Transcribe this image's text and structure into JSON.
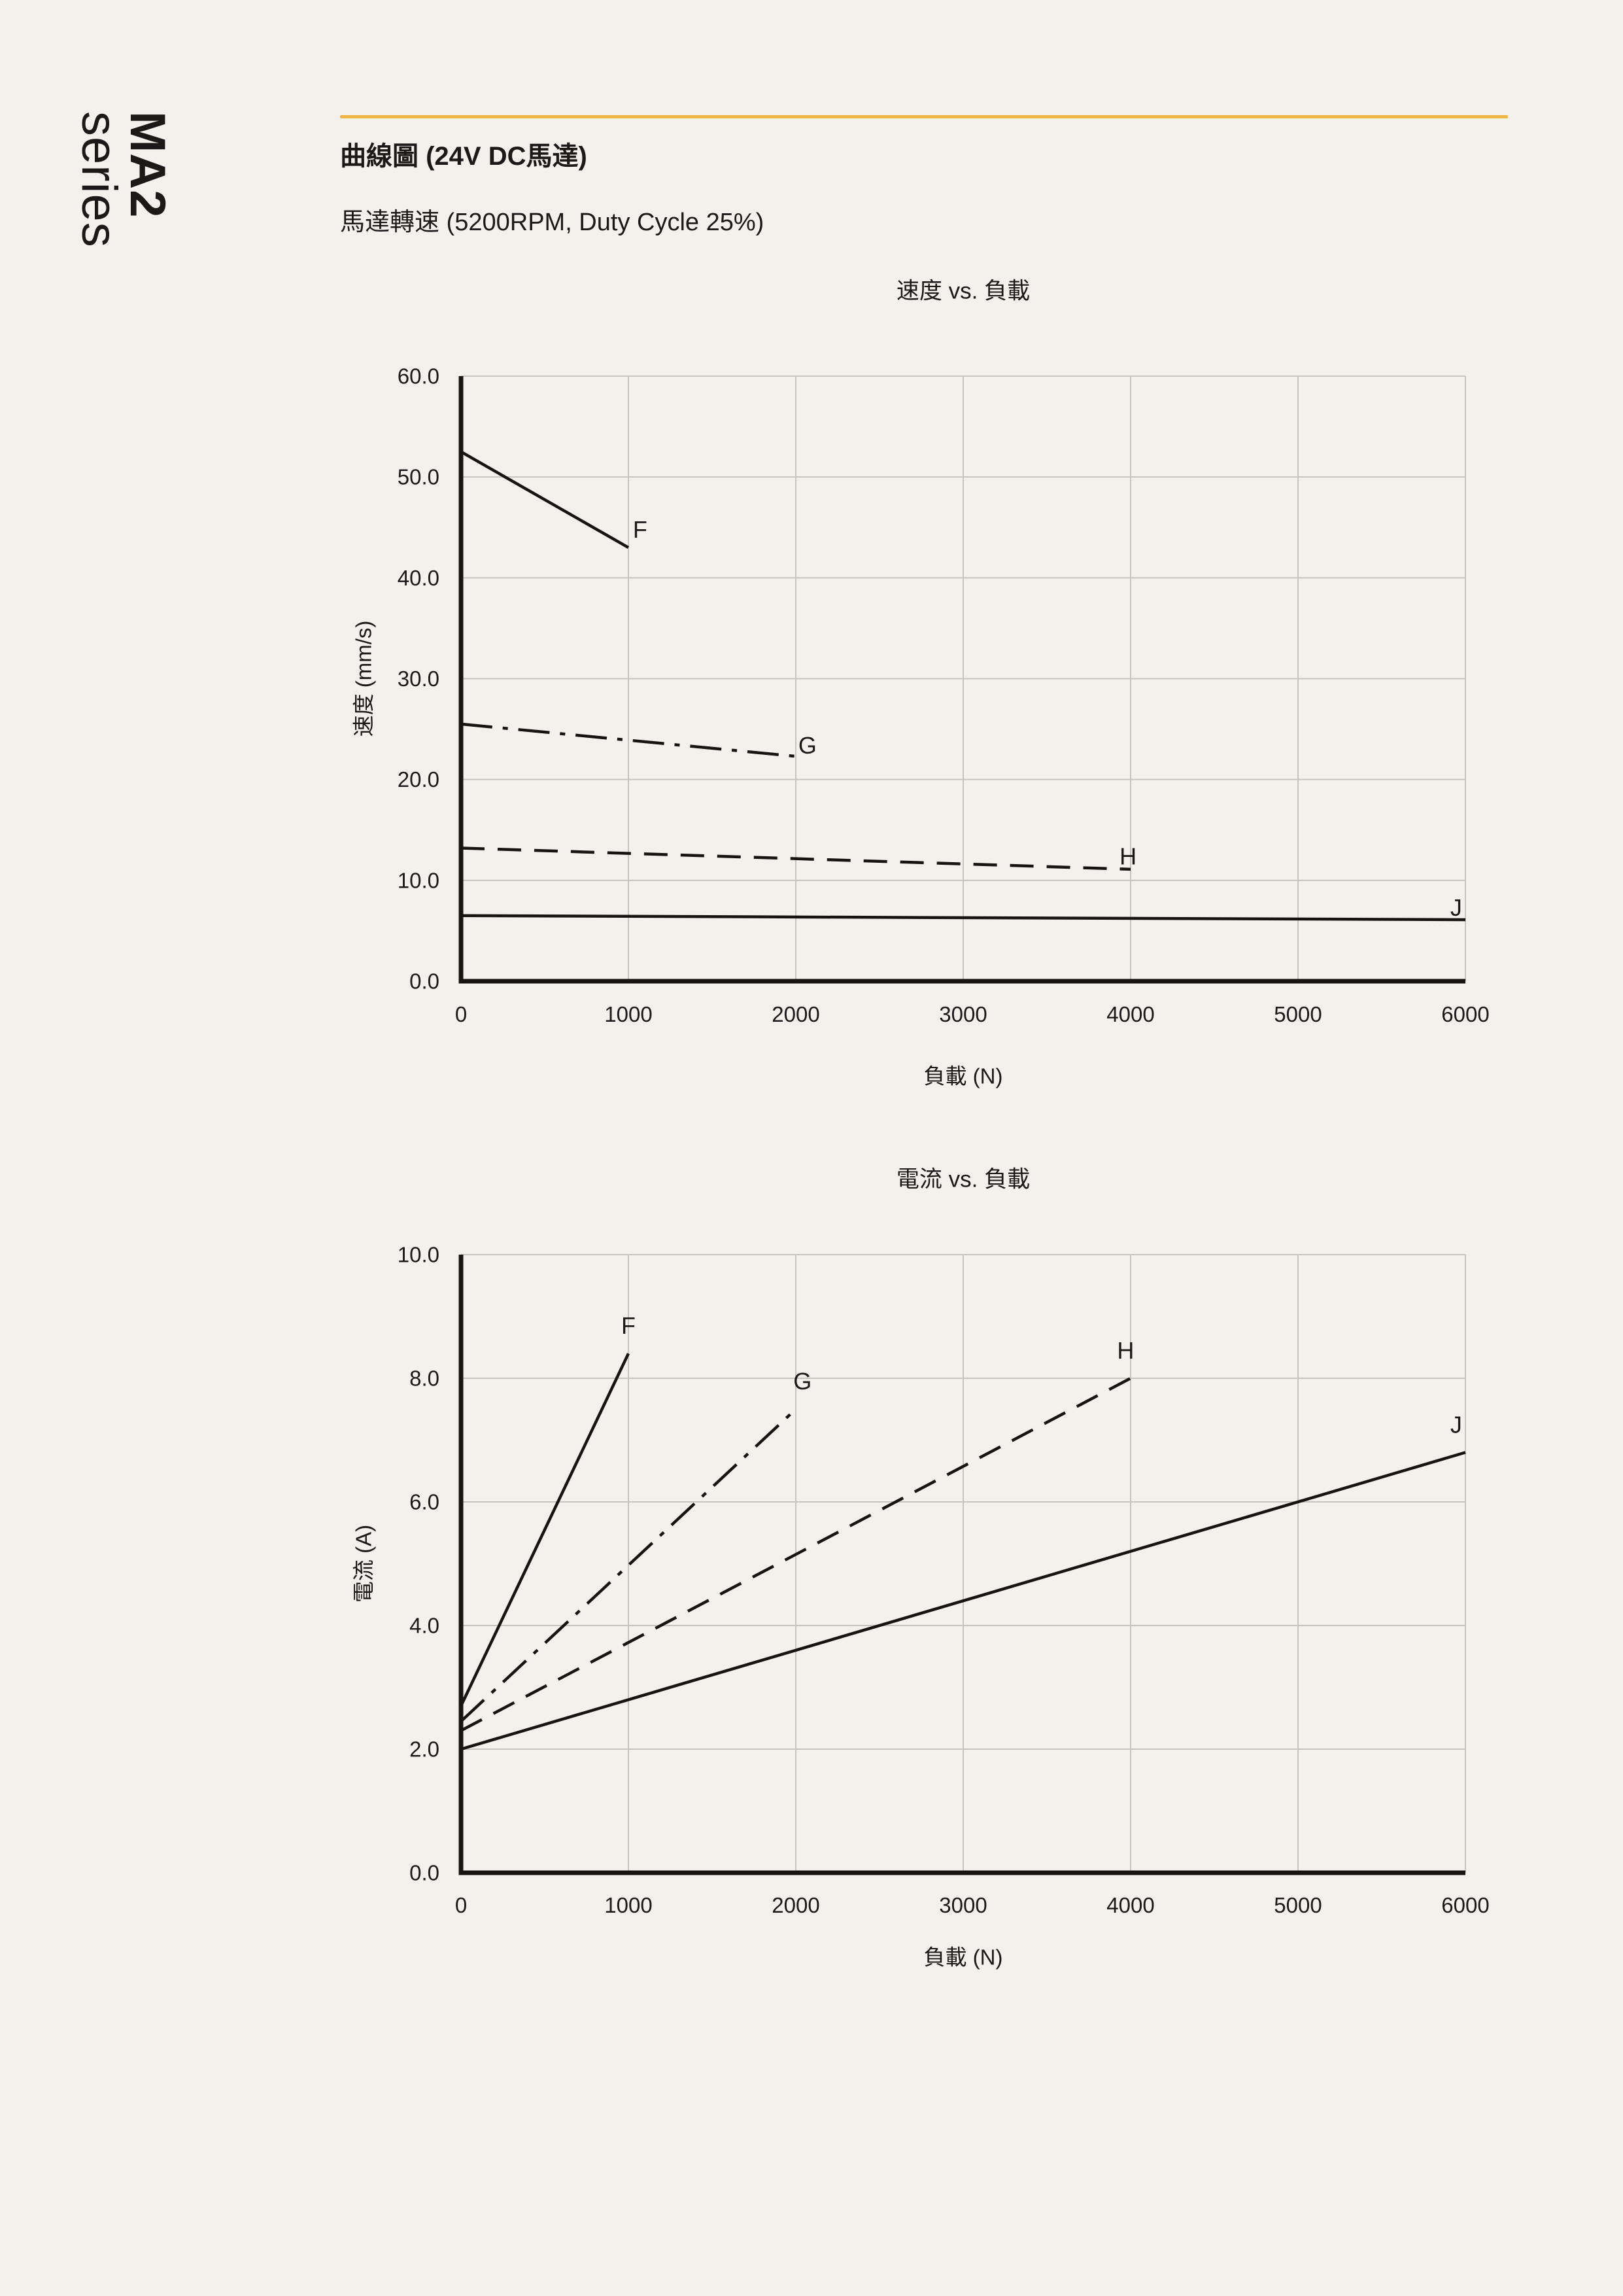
{
  "page": {
    "background_color": "#f4f1ec",
    "text_color": "#1b1a18",
    "accent_color": "#f0b545",
    "grid_color": "#c7c4be",
    "axis_color": "#161512"
  },
  "brand": {
    "line1": "MA2",
    "line2": "series"
  },
  "header": {
    "title": "曲線圖 (24V DC馬達)",
    "subtitle": "馬達轉速 (5200RPM, Duty Cycle 25%)"
  },
  "chart_data": [
    {
      "type": "line",
      "title": "速度 vs. 負載",
      "xlabel": "負載 (N)",
      "ylabel": "速度 (mm/s)",
      "xlim": [
        0,
        6000
      ],
      "ylim": [
        0,
        60
      ],
      "xticks": [
        0,
        1000,
        2000,
        3000,
        4000,
        5000,
        6000
      ],
      "yticks": [
        0,
        10,
        20,
        30,
        40,
        50,
        60
      ],
      "ytick_format": "one-decimal",
      "grid": true,
      "legend": "inline-series-labels",
      "series": [
        {
          "name": "F",
          "style": "solid",
          "points": [
            [
              0,
              52.5
            ],
            [
              1000,
              43.0
            ]
          ],
          "label_at": [
            1070,
            44.8
          ]
        },
        {
          "name": "G",
          "style": "dashdot",
          "points": [
            [
              0,
              25.5
            ],
            [
              2000,
              22.3
            ]
          ],
          "label_at": [
            2070,
            23.4
          ]
        },
        {
          "name": "H",
          "style": "dashed",
          "points": [
            [
              0,
              13.2
            ],
            [
              4000,
              11.1
            ]
          ],
          "label_at": [
            3985,
            12.4
          ]
        },
        {
          "name": "J",
          "style": "solid",
          "points": [
            [
              0,
              6.5
            ],
            [
              6000,
              6.1
            ]
          ],
          "label_at": [
            5945,
            7.3
          ]
        }
      ]
    },
    {
      "type": "line",
      "title": "電流 vs. 負載",
      "xlabel": "負載 (N)",
      "ylabel": "電流 (A)",
      "xlim": [
        0,
        6000
      ],
      "ylim": [
        0,
        10
      ],
      "xticks": [
        0,
        1000,
        2000,
        3000,
        4000,
        5000,
        6000
      ],
      "yticks": [
        0,
        2,
        4,
        6,
        8,
        10
      ],
      "ytick_format": "one-decimal",
      "grid": true,
      "legend": "inline-series-labels",
      "series": [
        {
          "name": "F",
          "style": "solid",
          "points": [
            [
              0,
              2.7
            ],
            [
              1000,
              8.4
            ]
          ],
          "label_at": [
            1000,
            8.85
          ]
        },
        {
          "name": "G",
          "style": "dashdot",
          "points": [
            [
              0,
              2.45
            ],
            [
              2000,
              7.5
            ]
          ],
          "label_at": [
            2040,
            7.95
          ]
        },
        {
          "name": "H",
          "style": "dashed",
          "points": [
            [
              0,
              2.3
            ],
            [
              4000,
              8.0
            ]
          ],
          "label_at": [
            3970,
            8.45
          ]
        },
        {
          "name": "J",
          "style": "solid",
          "points": [
            [
              0,
              2.0
            ],
            [
              6000,
              6.8
            ]
          ],
          "label_at": [
            5945,
            7.25
          ]
        }
      ]
    }
  ]
}
